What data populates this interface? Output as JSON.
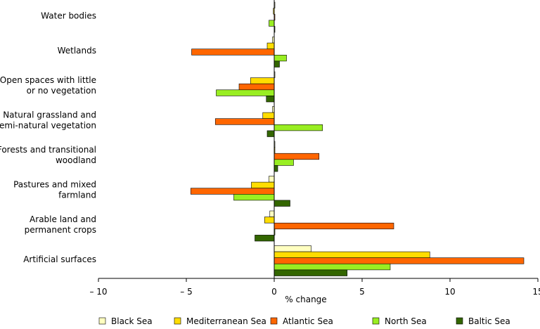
{
  "chart_data": {
    "type": "bar",
    "orientation": "horizontal",
    "title": "",
    "xlabel": "% change",
    "ylabel": "",
    "xlim": [
      -10,
      15
    ],
    "x_ticks": [
      -10,
      -5,
      0,
      5,
      10,
      15
    ],
    "x_tick_labels": [
      "– 10",
      "– 5",
      "0",
      "5",
      "10",
      "15"
    ],
    "grid": false,
    "legend_position": "bottom",
    "categories": [
      [
        "Water bodies"
      ],
      [
        "Wetlands"
      ],
      [
        "Open spaces with little",
        "or no vegetation"
      ],
      [
        "Natural grassland and",
        "semi-natural vegetation"
      ],
      [
        "Forests and transitional",
        "woodland"
      ],
      [
        "Pastures and mixed",
        "farmland"
      ],
      [
        "Arable land and",
        "permanent crops"
      ],
      [
        "Artificial surfaces"
      ]
    ],
    "series": [
      {
        "name": "Black Sea",
        "color": "#ffffc0",
        "values": [
          0.0,
          -0.1,
          0.0,
          -0.1,
          0.0,
          -0.3,
          -0.25,
          2.1
        ]
      },
      {
        "name": "Mediterranean Sea",
        "color": "#ffdd00",
        "values": [
          -0.05,
          -0.4,
          -1.35,
          -0.65,
          0.0,
          -1.3,
          -0.55,
          8.85
        ]
      },
      {
        "name": "Atlantic Sea",
        "color": "#ff6600",
        "values": [
          0.0,
          -4.7,
          -2.0,
          -3.35,
          2.55,
          -4.75,
          6.8,
          14.2
        ]
      },
      {
        "name": "North Sea",
        "color": "#99ee22",
        "values": [
          -0.3,
          0.7,
          -3.3,
          2.75,
          1.1,
          -2.3,
          0.0,
          6.6
        ]
      },
      {
        "name": "Baltic Sea",
        "color": "#336600",
        "values": [
          0.0,
          0.3,
          -0.45,
          -0.4,
          0.2,
          0.9,
          -1.1,
          4.15
        ]
      }
    ]
  }
}
